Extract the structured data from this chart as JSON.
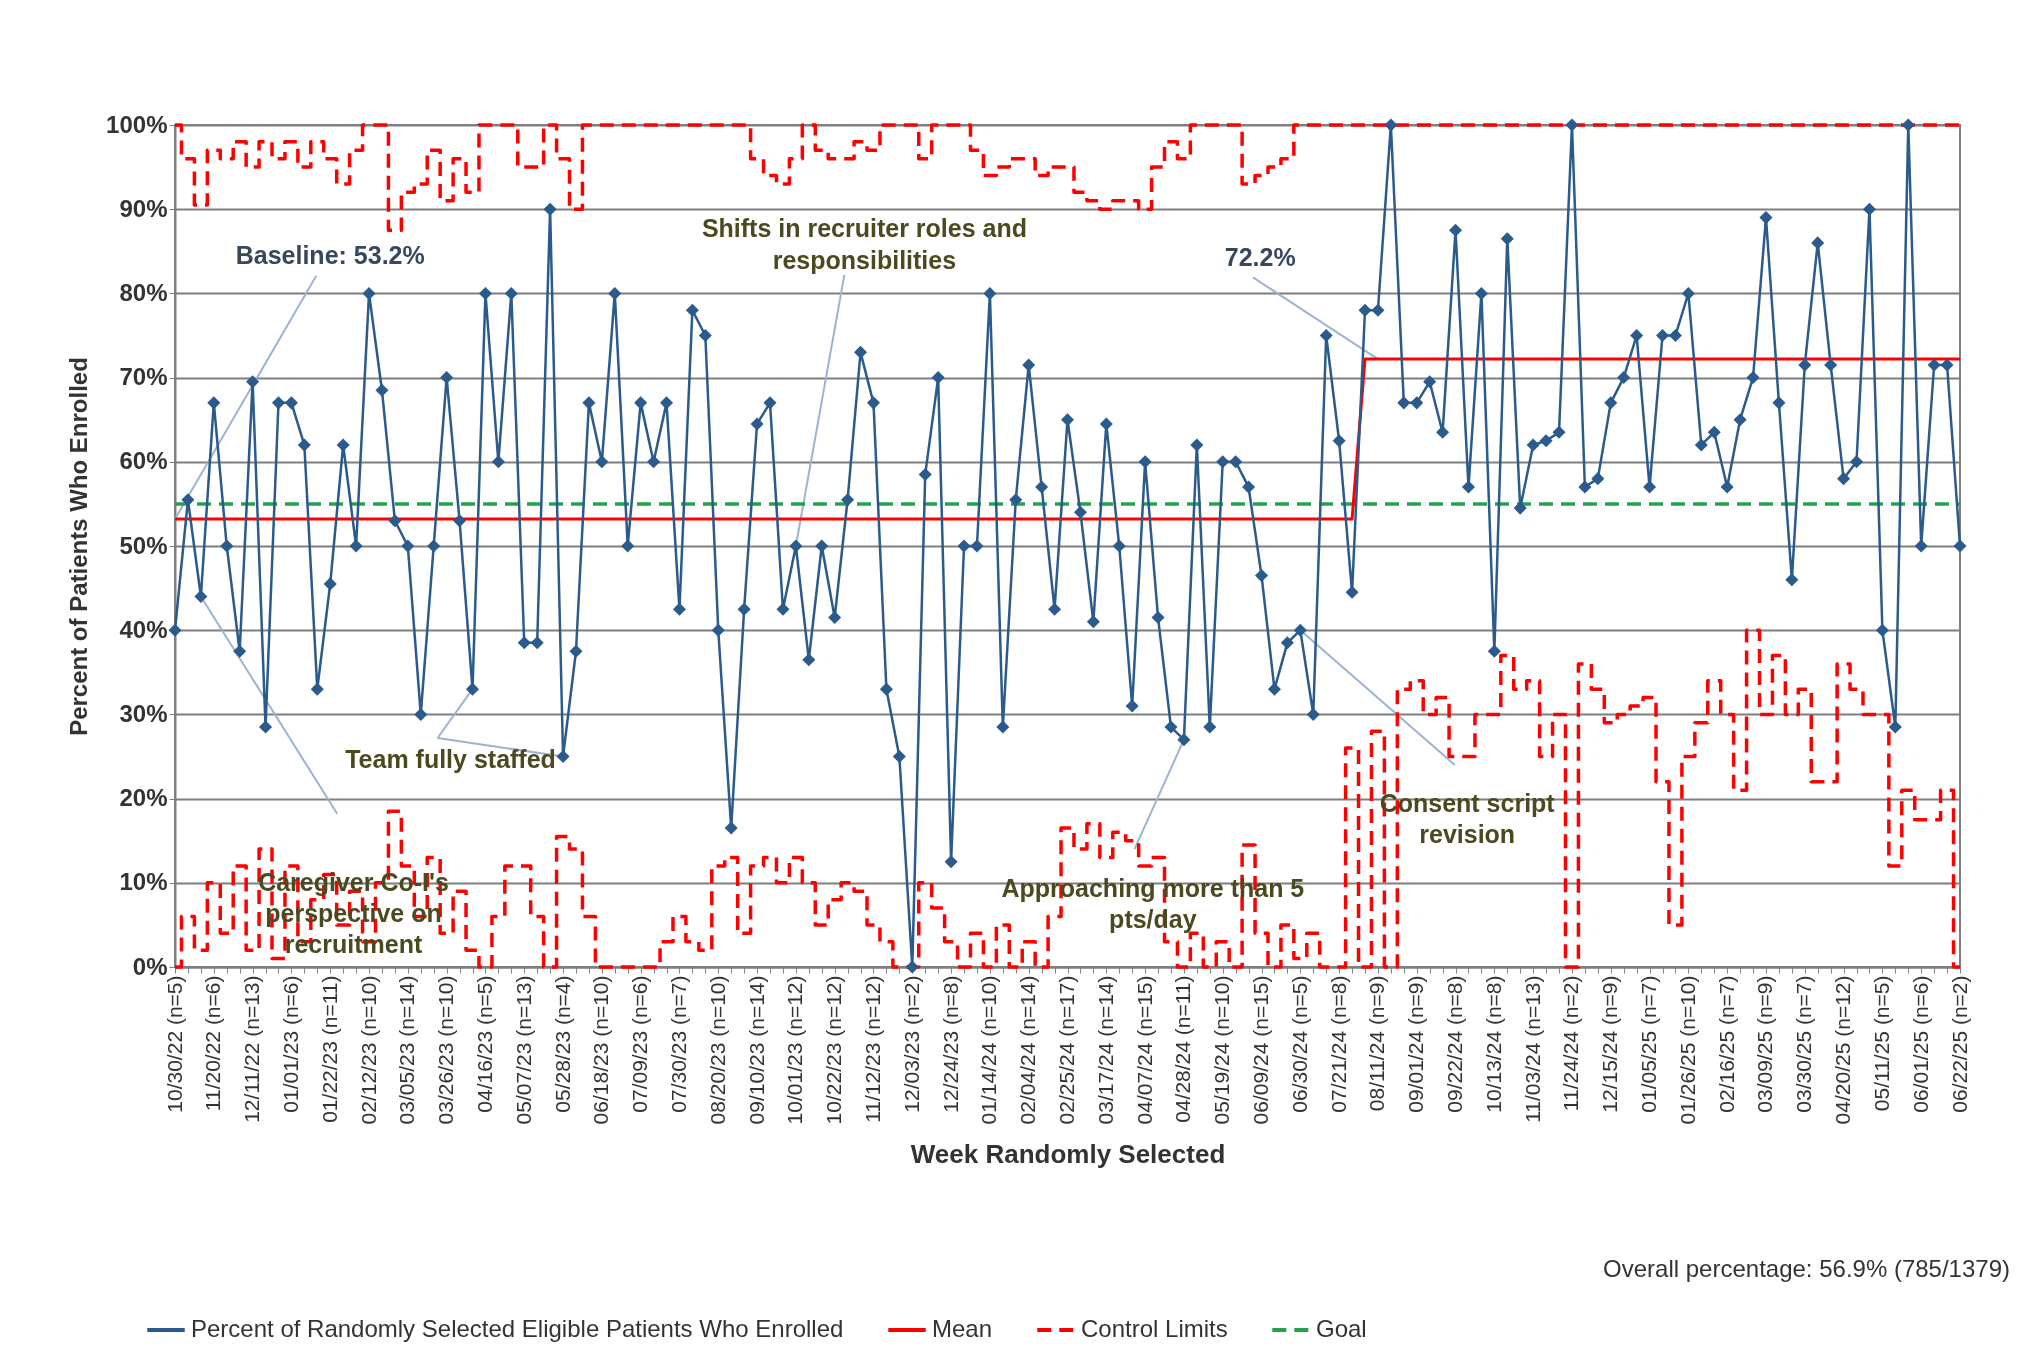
{
  "chart_data": {
    "type": "line",
    "xlabel": "Week Randomly Selected",
    "ylabel": "Percent of Patients Who Enrolled",
    "categories": [
      "10/30/22 (n=5)",
      null,
      null,
      "11/20/22 (n=6)",
      null,
      null,
      "12/11/22 (n=13)",
      null,
      null,
      "01/01/23 (n=6)",
      null,
      null,
      "01/22/23 (n=11)",
      null,
      null,
      "02/12/23 (n=10)",
      null,
      null,
      "03/05/23 (n=14)",
      null,
      null,
      "03/26/23 (n=10)",
      null,
      null,
      "04/16/23 (n=5)",
      null,
      null,
      "05/07/23 (n=13)",
      null,
      null,
      "05/28/23 (n=4)",
      null,
      null,
      "06/18/23 (n=10)",
      null,
      null,
      "07/09/23 (n=6)",
      null,
      null,
      "07/30/23 (n=7)",
      null,
      null,
      "08/20/23 (n=10)",
      null,
      null,
      "09/10/23 (n=14)",
      null,
      null,
      "10/01/23 (n=12)",
      null,
      null,
      "10/22/23 (n=12)",
      null,
      null,
      "11/12/23 (n=12)",
      null,
      null,
      "12/03/23 (n=2)",
      null,
      null,
      "12/24/23 (n=8)",
      null,
      null,
      "01/14/24 (n=10)",
      null,
      null,
      "02/04/24 (n=14)",
      null,
      null,
      "02/25/24 (n=17)",
      null,
      null,
      "03/17/24 (n=14)",
      null,
      null,
      "04/07/24 (n=15)",
      null,
      null,
      "04/28/24 (n=11)",
      null,
      null,
      "05/19/24 (n=10)",
      null,
      null,
      "06/09/24 (n=15)",
      null,
      null,
      "06/30/24 (n=5)",
      null,
      null,
      "07/21/24 (n=8)",
      null,
      null,
      "08/11/24 (n=9)",
      null,
      null,
      "09/01/24 (n=9)",
      null,
      null,
      "09/22/24 (n=8)",
      null,
      null,
      "10/13/24 (n=8)",
      null,
      null,
      "11/03/24 (n=13)",
      null,
      null,
      "11/24/24 (n=2)",
      null,
      null,
      "12/15/24 (n=9)",
      null,
      null,
      "01/05/25 (n=7)",
      null,
      null,
      "01/26/25 (n=10)",
      null,
      null,
      "02/16/25 (n=7)",
      null,
      null,
      "03/09/25 (n=9)",
      null,
      null,
      "03/30/25 (n=7)",
      null,
      null,
      "04/20/25 (n=12)",
      null,
      null,
      "05/11/25 (n=5)",
      null,
      null,
      "06/01/25 (n=6)",
      null,
      null,
      "06/22/25 (n=2)"
    ],
    "series": [
      {
        "name": "Percent of Randomly Selected Eligible Patients Who Enrolled",
        "color": "#2b5a8c",
        "marker": "diamond",
        "line_style": "solid",
        "values": [
          40,
          55.5,
          44,
          67,
          50,
          37.5,
          69.5,
          28.5,
          67,
          67,
          62,
          33,
          45.5,
          62,
          50,
          80,
          68.5,
          53,
          50,
          30,
          50,
          70,
          53,
          33,
          80,
          60,
          80,
          38.5,
          38.5,
          90,
          25,
          37.5,
          67,
          60,
          80,
          50,
          67,
          60,
          67,
          42.5,
          78,
          75,
          40,
          16.5,
          42.5,
          64.5,
          67,
          42.5,
          50,
          36.5,
          50,
          41.5,
          55.5,
          73,
          67,
          33,
          25,
          0,
          58.5,
          70,
          12.5,
          50,
          50,
          80,
          28.5,
          55.5,
          71.5,
          57,
          42.5,
          65,
          54,
          41,
          64.5,
          50,
          31,
          60,
          41.5,
          28.5,
          27,
          62,
          28.5,
          60,
          60,
          57,
          46.5,
          33,
          38.5,
          40,
          30,
          75,
          62.5,
          44.5,
          78,
          78,
          100,
          67,
          67,
          69.5,
          63.5,
          87.5,
          57,
          80,
          37.5,
          86.5,
          54.5,
          62,
          62.5,
          63.5,
          100,
          57,
          58,
          67,
          70,
          75,
          57,
          75,
          75,
          80,
          62,
          63.5,
          57,
          65,
          70,
          89,
          67,
          46,
          71.5,
          86,
          71.5,
          58,
          60,
          90,
          40,
          28.5,
          100,
          50,
          71.5,
          71.5,
          50
        ]
      },
      {
        "name": "Mean",
        "color": "#ff0000",
        "line_style": "solid",
        "values": [
          53.2,
          53.2,
          53.2,
          53.2,
          53.2,
          53.2,
          53.2,
          53.2,
          53.2,
          53.2,
          53.2,
          53.2,
          53.2,
          53.2,
          53.2,
          53.2,
          53.2,
          53.2,
          53.2,
          53.2,
          53.2,
          53.2,
          53.2,
          53.2,
          53.2,
          53.2,
          53.2,
          53.2,
          53.2,
          53.2,
          53.2,
          53.2,
          53.2,
          53.2,
          53.2,
          53.2,
          53.2,
          53.2,
          53.2,
          53.2,
          53.2,
          53.2,
          53.2,
          53.2,
          53.2,
          53.2,
          53.2,
          53.2,
          53.2,
          53.2,
          53.2,
          53.2,
          53.2,
          53.2,
          53.2,
          53.2,
          53.2,
          53.2,
          53.2,
          53.2,
          53.2,
          53.2,
          53.2,
          53.2,
          53.2,
          53.2,
          53.2,
          53.2,
          53.2,
          53.2,
          53.2,
          53.2,
          53.2,
          53.2,
          53.2,
          53.2,
          53.2,
          53.2,
          53.2,
          53.2,
          53.2,
          53.2,
          53.2,
          53.2,
          53.2,
          53.2,
          53.2,
          53.2,
          53.2,
          53.2,
          53.2,
          53.2,
          72.2,
          72.2,
          72.2,
          72.2,
          72.2,
          72.2,
          72.2,
          72.2,
          72.2,
          72.2,
          72.2,
          72.2,
          72.2,
          72.2,
          72.2,
          72.2,
          72.2,
          72.2,
          72.2,
          72.2,
          72.2,
          72.2,
          72.2,
          72.2,
          72.2,
          72.2,
          72.2,
          72.2,
          72.2,
          72.2,
          72.2,
          72.2,
          72.2,
          72.2,
          72.2,
          72.2,
          72.2,
          72.2,
          72.2,
          72.2,
          72.2,
          72.2,
          72.2,
          72.2,
          72.2,
          72.2,
          72.2
        ]
      },
      {
        "name": "Control Limits",
        "color": "#ff0000",
        "type": "step",
        "line_style": "dashed",
        "values": [
          100,
          96,
          90.5,
          97,
          96,
          98,
          95,
          98,
          96,
          98,
          95,
          98,
          96,
          93,
          97,
          100,
          100,
          87.5,
          92,
          93,
          97,
          91,
          96,
          92,
          100,
          100,
          100,
          95,
          95,
          100,
          96,
          90,
          100,
          100,
          100,
          100,
          100,
          100,
          100,
          100,
          100,
          100,
          100,
          100,
          100,
          96,
          94,
          93,
          96,
          100,
          97,
          96,
          96,
          98,
          97,
          100,
          100,
          100,
          96,
          100,
          100,
          100,
          97,
          94,
          95,
          96,
          96,
          94,
          95,
          95,
          92,
          91,
          90,
          91,
          91,
          90,
          95,
          98,
          96,
          100,
          100,
          100,
          100,
          93,
          94,
          95,
          96,
          100,
          100,
          100,
          100,
          100,
          100,
          100,
          100,
          100,
          100,
          100,
          100,
          100,
          100,
          100,
          100,
          100,
          100,
          100,
          100,
          100,
          100,
          100,
          100,
          100,
          100,
          100,
          100,
          100,
          100,
          100,
          100,
          100,
          100,
          100,
          100,
          100,
          100,
          100,
          100,
          100,
          100,
          100,
          100,
          100,
          100,
          100,
          100,
          100,
          100,
          100,
          100
        ]
      },
      {
        "color": "#ff0000",
        "type": "step",
        "line_style": "dashed",
        "values": [
          0,
          6,
          2,
          10,
          4,
          12,
          2,
          14,
          1,
          12,
          3,
          8,
          11,
          5,
          9,
          3,
          10,
          18.5,
          12,
          6,
          13,
          4,
          9,
          2,
          0,
          6,
          12,
          12,
          6,
          0,
          15.5,
          14,
          6,
          0,
          0,
          0,
          0,
          0,
          3,
          6,
          3,
          2,
          12,
          13,
          4,
          12,
          13,
          10,
          13,
          10,
          5,
          8,
          10,
          9,
          5,
          3,
          0,
          0,
          10,
          7,
          3,
          0,
          4,
          0,
          5,
          0,
          3,
          0,
          6,
          16.5,
          14,
          17,
          13,
          16,
          15,
          12,
          13,
          3,
          0,
          4,
          0,
          3,
          0,
          14.5,
          4,
          0,
          5,
          1,
          4,
          0,
          0,
          26,
          0,
          28,
          0,
          33,
          34,
          30,
          32,
          25,
          25,
          30,
          30,
          37,
          33,
          34,
          25,
          30,
          0,
          36,
          33,
          29,
          30,
          31,
          32,
          22,
          5,
          25,
          29,
          34,
          30,
          21,
          40,
          30,
          37,
          30,
          33,
          22,
          22,
          36,
          33,
          30,
          30,
          12,
          21,
          17.5,
          17.5,
          21,
          0
        ]
      },
      {
        "name": "Goal",
        "color": "#23a24d",
        "line_style": "dashed",
        "values": [
          55,
          55,
          55,
          55,
          55,
          55,
          55,
          55,
          55,
          55,
          55,
          55,
          55,
          55,
          55,
          55,
          55,
          55,
          55,
          55,
          55,
          55,
          55,
          55,
          55,
          55,
          55,
          55,
          55,
          55,
          55,
          55,
          55,
          55,
          55,
          55,
          55,
          55,
          55,
          55,
          55,
          55,
          55,
          55,
          55,
          55,
          55,
          55,
          55,
          55,
          55,
          55,
          55,
          55,
          55,
          55,
          55,
          55,
          55,
          55,
          55,
          55,
          55,
          55,
          55,
          55,
          55,
          55,
          55,
          55,
          55,
          55,
          55,
          55,
          55,
          55,
          55,
          55,
          55,
          55,
          55,
          55,
          55,
          55,
          55,
          55,
          55,
          55,
          55,
          55,
          55,
          55,
          55,
          55,
          55,
          55,
          55,
          55,
          55,
          55,
          55,
          55,
          55,
          55,
          55,
          55,
          55,
          55,
          55,
          55,
          55,
          55,
          55,
          55,
          55,
          55,
          55,
          55,
          55,
          55,
          55,
          55,
          55,
          55,
          55,
          55,
          55,
          55,
          55,
          55,
          55,
          55,
          55,
          55,
          55,
          55,
          55,
          55,
          55
        ]
      }
    ],
    "ylim": [
      0,
      100
    ],
    "yticks": [
      {
        "value": 0,
        "label": "0%"
      },
      {
        "value": 10,
        "label": "10%"
      },
      {
        "value": 20,
        "label": "20%"
      },
      {
        "value": 30,
        "label": "30%"
      },
      {
        "value": 40,
        "label": "40%"
      },
      {
        "value": 50,
        "label": "50%"
      },
      {
        "value": 60,
        "label": "60%"
      },
      {
        "value": 70,
        "label": "70%"
      },
      {
        "value": 80,
        "label": "80%"
      },
      {
        "value": 90,
        "label": "90%"
      },
      {
        "value": 100,
        "label": "100%"
      }
    ],
    "grid": "y",
    "legend": "bottom",
    "annotations": [
      {
        "text": "Baseline: 53.2%",
        "x": "10/30/22 (n=5)",
        "y": 53.2
      },
      {
        "text": "Shifts in recruiter roles and responsibilities",
        "x": "10/01/23 (n=12)",
        "y": 50
      },
      {
        "text": "72.2%",
        "x": "08/11/24 (n=9)",
        "y": 72.2
      },
      {
        "text": "Team fully staffed",
        "x": "05/28/23 (n=4)",
        "y": 25
      },
      "Caregiver Co-I's perspective on recruitment",
      {
        "text": "Approaching more than 5 pts/day",
        "x": "04/28/24 (n=11)",
        "y": 27
      },
      {
        "text": "Consent script revision",
        "x": "06/30/24 (n=5)",
        "y": 40
      },
      "Overall percentage: 56.9% (785/1379)"
    ]
  }
}
